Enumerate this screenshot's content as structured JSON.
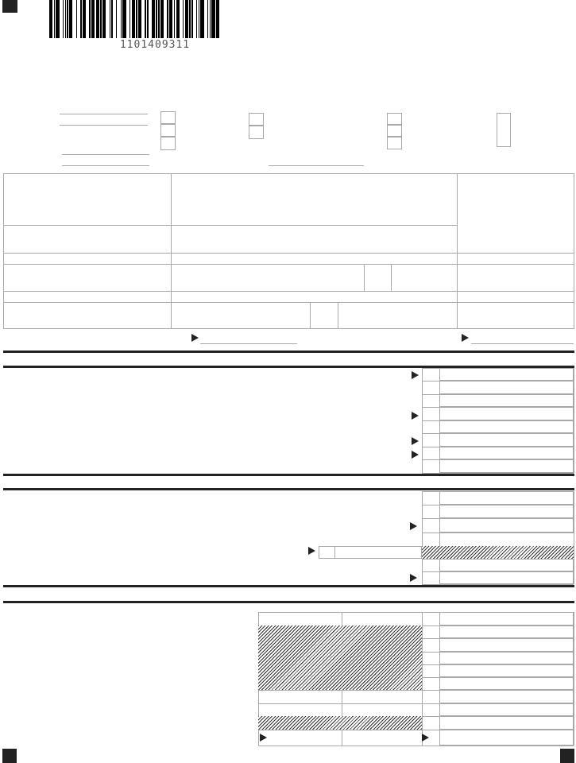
{
  "barcode": {
    "number": "1101409311"
  },
  "colors": {
    "ink": "#222222",
    "rule": "#a8a8a8",
    "hatch": "#333333"
  },
  "icons": {
    "registration_mark": "black-square",
    "pointer": "triangle-right-arrow"
  }
}
